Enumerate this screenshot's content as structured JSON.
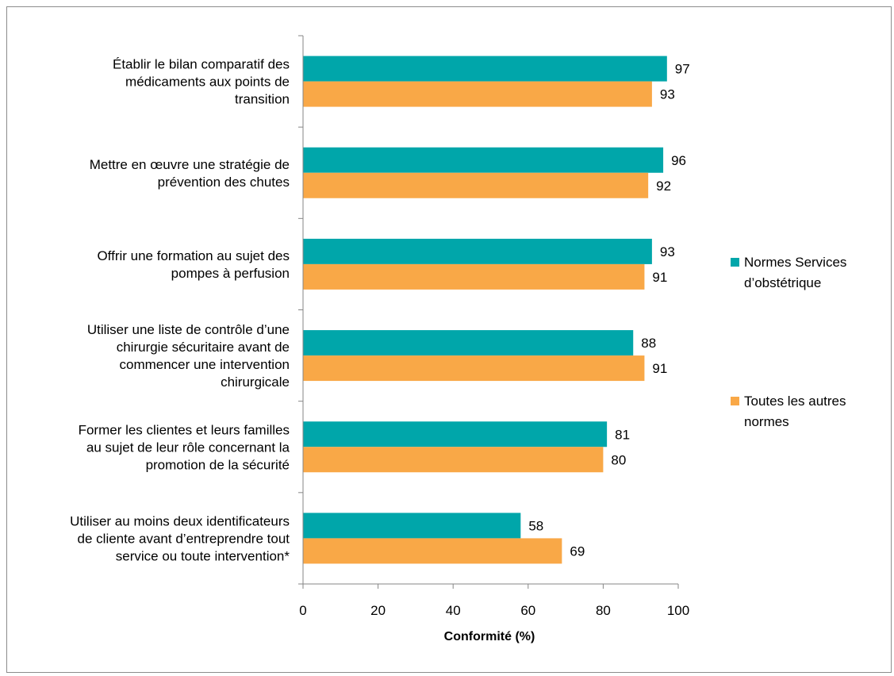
{
  "chart_data": {
    "type": "bar",
    "orientation": "horizontal",
    "title": "",
    "xlabel": "Conformité (%)",
    "ylabel": "",
    "xlim": [
      0,
      100
    ],
    "x_ticks": [
      0,
      20,
      40,
      60,
      80,
      100
    ],
    "grid": false,
    "legend_position": "right",
    "categories": [
      [
        "Établir le bilan comparatif des",
        "médicaments aux points de",
        "transition"
      ],
      [
        "Mettre en œuvre une stratégie de",
        "prévention des chutes"
      ],
      [
        "Offrir une formation au sujet des",
        "pompes à perfusion"
      ],
      [
        "Utiliser une liste de contrôle d’une",
        "chirurgie sécuritaire avant de",
        "commencer une intervention",
        "chirurgicale"
      ],
      [
        "Former les clientes et leurs familles",
        "au sujet de leur rôle concernant la",
        "promotion de la sécurité"
      ],
      [
        "Utiliser au moins deux identificateurs",
        "de cliente avant d’entreprendre tout",
        "service ou toute intervention*"
      ]
    ],
    "series": [
      {
        "name": [
          "Normes Services",
          "d’obstétrique"
        ],
        "color": "#00a6aa",
        "values": [
          97,
          96,
          93,
          88,
          81,
          58
        ]
      },
      {
        "name": [
          "Toutes les autres",
          "normes"
        ],
        "color": "#f9a847",
        "values": [
          93,
          92,
          91,
          91,
          80,
          69
        ]
      }
    ]
  }
}
